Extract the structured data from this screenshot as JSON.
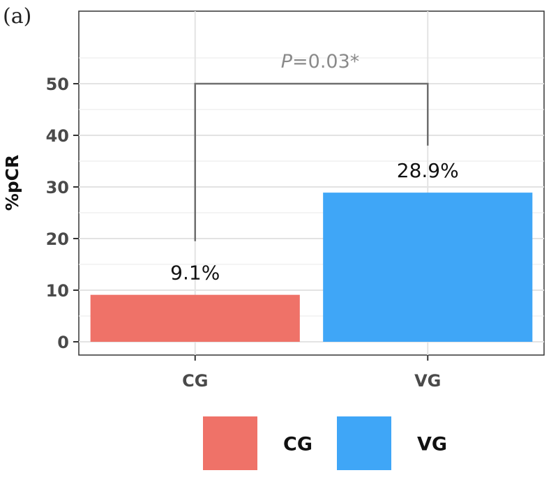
{
  "panel_label": "(a)",
  "chart_data": {
    "type": "bar",
    "categories": [
      "CG",
      "VG"
    ],
    "values": [
      9.1,
      28.9
    ],
    "data_labels": [
      "9.1%",
      "28.9%"
    ],
    "colors": [
      "#ef7268",
      "#3fa6f7"
    ],
    "ylabel": "%pCR",
    "xlabel": "",
    "ylim": [
      0,
      57
    ],
    "yticks": [
      0,
      10,
      20,
      30,
      40,
      50
    ],
    "grid": true,
    "legend": {
      "placement": "bottom",
      "entries": [
        {
          "label": "CG",
          "color": "#ef7268"
        },
        {
          "label": "VG",
          "color": "#3fa6f7"
        }
      ]
    },
    "annotation": {
      "p_symbol": "P",
      "p_rest": "=0.03*",
      "bracket_top": 50,
      "left_end": 19.5,
      "right_end": 38
    }
  }
}
